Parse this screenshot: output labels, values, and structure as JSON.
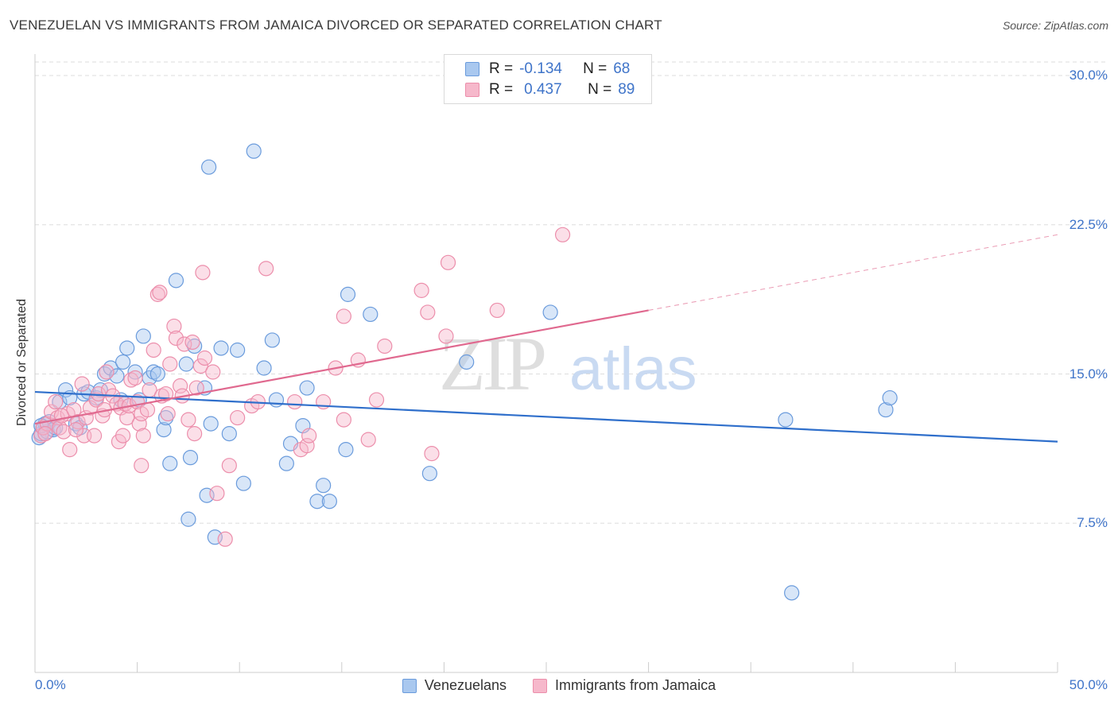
{
  "title": "VENEZUELAN VS IMMIGRANTS FROM JAMAICA DIVORCED OR SEPARATED CORRELATION CHART",
  "source": "Source: ZipAtlas.com",
  "watermark": {
    "zip": "ZIP",
    "atlas": "atlas"
  },
  "legend": {
    "rows": [
      {
        "r_label": "R =",
        "r_value": "-0.134",
        "n_label": "N =",
        "n_value": "68"
      },
      {
        "r_label": "R =",
        "r_value": "0.437",
        "n_label": "N =",
        "n_value": "89"
      }
    ]
  },
  "colors": {
    "venezuelans_fill": "#a9c8ef",
    "venezuelans_stroke": "#6a9bdc",
    "venezuelans_line": "#2f6fcb",
    "jamaica_fill": "#f6b8cb",
    "jamaica_stroke": "#ec8eab",
    "jamaica_line": "#e0698f",
    "tick_text": "#3f74c9",
    "grid": "#dddddd"
  },
  "chart_data": {
    "type": "scatter",
    "title": "VENEZUELAN VS IMMIGRANTS FROM JAMAICA DIVORCED OR SEPARATED CORRELATION CHART",
    "xlabel": "",
    "ylabel": "Divorced or Separated",
    "xlim": [
      0,
      50
    ],
    "ylim": [
      0,
      31
    ],
    "x_tick_labels": [
      "0.0%",
      "50.0%"
    ],
    "y_ticks": [
      7.5,
      15.0,
      22.5,
      30.0
    ],
    "y_tick_labels": [
      "7.5%",
      "15.0%",
      "22.5%",
      "30.0%"
    ],
    "grid": true,
    "legend_position": "top-center",
    "series": [
      {
        "name": "Venezuelans",
        "r": -0.134,
        "n": 68,
        "trend": {
          "x": [
            0,
            50
          ],
          "y": [
            14.1,
            11.6
          ],
          "dashed_to": null
        },
        "points": [
          [
            0.2,
            11.8
          ],
          [
            0.3,
            12.0
          ],
          [
            0.4,
            12.3
          ],
          [
            0.5,
            12.5
          ],
          [
            0.6,
            12.1
          ],
          [
            0.7,
            12.6
          ],
          [
            0.9,
            12.2
          ],
          [
            1.2,
            13.6
          ],
          [
            1.5,
            14.2
          ],
          [
            1.7,
            13.8
          ],
          [
            2.0,
            12.5
          ],
          [
            2.2,
            12.3
          ],
          [
            2.4,
            14.0
          ],
          [
            2.6,
            14.1
          ],
          [
            3.0,
            13.8
          ],
          [
            3.2,
            14.2
          ],
          [
            3.4,
            15.0
          ],
          [
            3.7,
            15.3
          ],
          [
            4.0,
            14.9
          ],
          [
            4.2,
            13.7
          ],
          [
            4.3,
            15.6
          ],
          [
            4.5,
            16.3
          ],
          [
            4.9,
            15.1
          ],
          [
            5.1,
            13.7
          ],
          [
            5.3,
            16.9
          ],
          [
            5.6,
            14.8
          ],
          [
            5.8,
            15.1
          ],
          [
            6.0,
            15.0
          ],
          [
            6.3,
            12.2
          ],
          [
            6.4,
            12.8
          ],
          [
            6.6,
            10.5
          ],
          [
            6.9,
            19.7
          ],
          [
            7.4,
            15.5
          ],
          [
            7.6,
            10.8
          ],
          [
            7.8,
            16.4
          ],
          [
            7.5,
            7.7
          ],
          [
            8.3,
            14.3
          ],
          [
            8.4,
            8.9
          ],
          [
            8.6,
            12.5
          ],
          [
            8.8,
            6.8
          ],
          [
            9.1,
            16.3
          ],
          [
            9.5,
            12.0
          ],
          [
            9.9,
            16.2
          ],
          [
            10.2,
            9.5
          ],
          [
            10.7,
            26.2
          ],
          [
            11.2,
            15.3
          ],
          [
            11.6,
            16.7
          ],
          [
            11.8,
            13.7
          ],
          [
            12.3,
            10.5
          ],
          [
            12.5,
            11.5
          ],
          [
            13.1,
            12.4
          ],
          [
            13.3,
            14.3
          ],
          [
            13.8,
            8.6
          ],
          [
            14.1,
            9.4
          ],
          [
            14.4,
            8.6
          ],
          [
            15.2,
            11.2
          ],
          [
            15.3,
            19.0
          ],
          [
            16.4,
            18.0
          ],
          [
            19.3,
            10.0
          ],
          [
            21.1,
            15.6
          ],
          [
            25.2,
            18.1
          ],
          [
            8.5,
            25.4
          ],
          [
            37.0,
            4.0
          ],
          [
            36.7,
            12.7
          ],
          [
            41.6,
            13.2
          ],
          [
            41.8,
            13.8
          ],
          [
            0.3,
            12.4
          ],
          [
            1.0,
            12.3
          ]
        ]
      },
      {
        "name": "Immigrants from Jamaica",
        "r": 0.437,
        "n": 89,
        "trend": {
          "x": [
            0,
            30
          ],
          "y": [
            12.5,
            18.2
          ],
          "dashed_to": {
            "x": 50,
            "y": 22.0
          }
        },
        "points": [
          [
            0.3,
            11.9
          ],
          [
            0.4,
            12.3
          ],
          [
            0.6,
            12.5
          ],
          [
            0.8,
            13.1
          ],
          [
            1.0,
            13.6
          ],
          [
            1.1,
            12.8
          ],
          [
            1.2,
            12.3
          ],
          [
            1.4,
            12.1
          ],
          [
            1.6,
            13.0
          ],
          [
            1.7,
            11.2
          ],
          [
            1.9,
            13.2
          ],
          [
            2.1,
            12.6
          ],
          [
            2.3,
            14.5
          ],
          [
            2.4,
            11.9
          ],
          [
            2.5,
            12.8
          ],
          [
            2.7,
            13.3
          ],
          [
            2.9,
            11.9
          ],
          [
            3.0,
            13.7
          ],
          [
            3.1,
            14.0
          ],
          [
            3.3,
            12.9
          ],
          [
            3.4,
            13.2
          ],
          [
            3.5,
            15.1
          ],
          [
            3.6,
            14.2
          ],
          [
            3.8,
            13.9
          ],
          [
            4.0,
            13.5
          ],
          [
            4.1,
            11.6
          ],
          [
            4.2,
            13.3
          ],
          [
            4.3,
            11.9
          ],
          [
            4.4,
            13.5
          ],
          [
            4.5,
            12.8
          ],
          [
            4.6,
            13.4
          ],
          [
            4.7,
            14.7
          ],
          [
            4.9,
            14.8
          ],
          [
            5.0,
            13.6
          ],
          [
            5.1,
            12.5
          ],
          [
            5.3,
            11.9
          ],
          [
            5.2,
            13.0
          ],
          [
            5.2,
            10.4
          ],
          [
            5.5,
            13.2
          ],
          [
            5.6,
            14.2
          ],
          [
            5.8,
            16.2
          ],
          [
            6.0,
            19.0
          ],
          [
            6.1,
            19.1
          ],
          [
            6.2,
            13.9
          ],
          [
            6.4,
            14.0
          ],
          [
            6.5,
            13.0
          ],
          [
            6.6,
            15.5
          ],
          [
            6.8,
            17.4
          ],
          [
            6.9,
            16.8
          ],
          [
            7.1,
            14.4
          ],
          [
            7.2,
            13.9
          ],
          [
            7.3,
            16.5
          ],
          [
            7.5,
            12.7
          ],
          [
            7.7,
            16.6
          ],
          [
            7.8,
            12.0
          ],
          [
            7.9,
            14.3
          ],
          [
            8.1,
            15.4
          ],
          [
            8.2,
            20.1
          ],
          [
            8.3,
            15.8
          ],
          [
            8.7,
            15.1
          ],
          [
            8.9,
            9.0
          ],
          [
            9.3,
            6.7
          ],
          [
            9.5,
            10.4
          ],
          [
            9.9,
            12.8
          ],
          [
            10.6,
            13.4
          ],
          [
            10.9,
            13.6
          ],
          [
            11.3,
            20.3
          ],
          [
            12.7,
            13.6
          ],
          [
            13.0,
            11.2
          ],
          [
            13.3,
            11.4
          ],
          [
            13.4,
            11.9
          ],
          [
            14.1,
            13.6
          ],
          [
            14.7,
            15.3
          ],
          [
            15.1,
            12.7
          ],
          [
            15.1,
            17.9
          ],
          [
            15.8,
            15.7
          ],
          [
            16.3,
            11.7
          ],
          [
            16.7,
            13.7
          ],
          [
            17.1,
            16.4
          ],
          [
            18.9,
            19.2
          ],
          [
            19.2,
            18.1
          ],
          [
            19.4,
            11.0
          ],
          [
            20.1,
            16.9
          ],
          [
            20.2,
            20.6
          ],
          [
            22.6,
            18.2
          ],
          [
            25.8,
            22.0
          ],
          [
            0.5,
            12.0
          ],
          [
            1.3,
            12.9
          ],
          [
            2.0,
            12.2
          ]
        ]
      }
    ]
  }
}
